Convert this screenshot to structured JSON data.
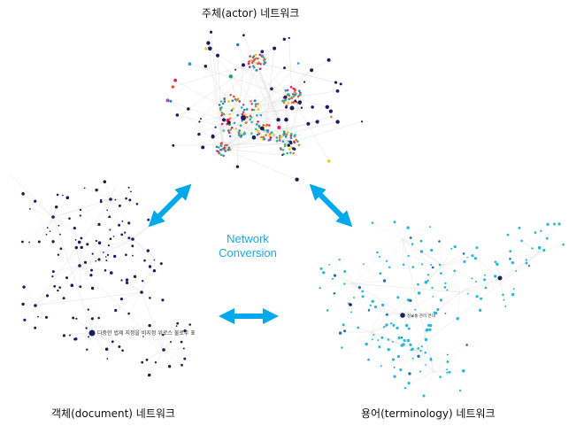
{
  "titles": {
    "actor": "주체(actor) 네트워크",
    "document": "객체(document) 네트워크",
    "terminology": "용어(terminology) 네트워크"
  },
  "center": {
    "line1": "Network",
    "line2": "Conversion"
  },
  "hub_labels": {
    "actor": "",
    "document": "다중한 법제 지정을 비지정 위로스 불로우 표",
    "terminology": "정보통 관리 연대"
  },
  "colors": {
    "arrow": "#00a9ec",
    "actor_nodes": "#1a1f5c",
    "document_nodes": "#1a1f5c",
    "terminology_nodes": "#2bb8d6",
    "edge": "#d9d9d9"
  },
  "icons": [
    "double-arrow-icon"
  ]
}
